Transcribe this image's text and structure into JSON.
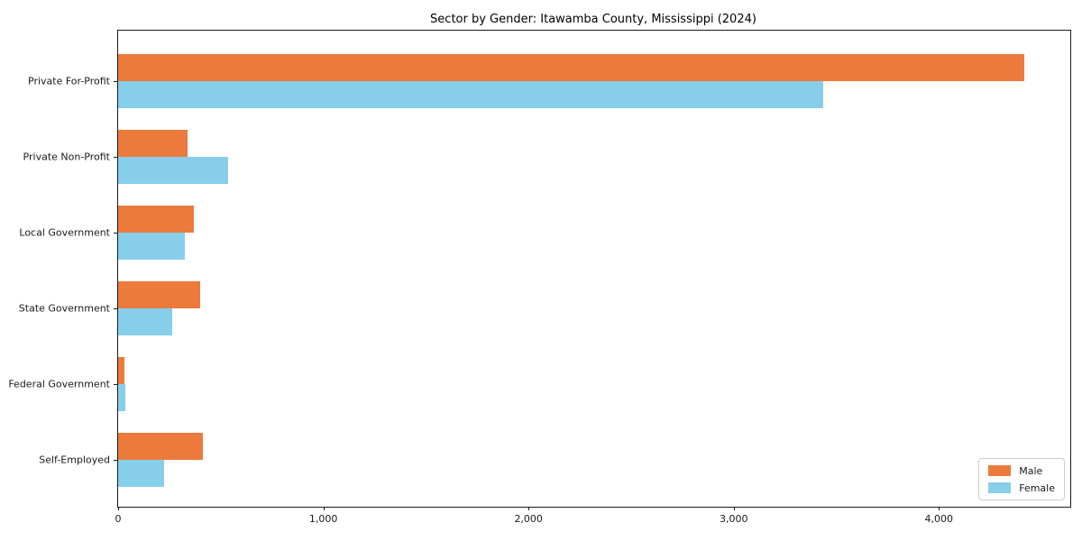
{
  "title": "Sector by Gender: Itawamba County, Mississippi (2024)",
  "colors": {
    "male": "#ec7a3c",
    "female": "#87ceeb",
    "axis_spine": "#1a1a1a",
    "legend_border": "#cccccc",
    "background": "#ffffff"
  },
  "chart_data": {
    "type": "bar",
    "orientation": "horizontal",
    "title": "Sector by Gender: Itawamba County, Mississippi (2024)",
    "xlabel": "",
    "ylabel": "",
    "grid": false,
    "categories": [
      "Private For-Profit",
      "Private Non-Profit",
      "Local Government",
      "State Government",
      "Federal Government",
      "Self-Employed"
    ],
    "series": [
      {
        "name": "Male",
        "color": "#ec7a3c",
        "values": [
          4415,
          340,
          370,
          400,
          30,
          415
        ]
      },
      {
        "name": "Female",
        "color": "#87ceeb",
        "values": [
          3435,
          535,
          325,
          265,
          35,
          225
        ]
      }
    ],
    "xlim": [
      0,
      4640
    ],
    "x_ticks": [
      0,
      1000,
      2000,
      3000,
      4000
    ],
    "x_tick_labels": [
      "0",
      "1,000",
      "2,000",
      "3,000",
      "4,000"
    ],
    "legend": {
      "position": "lower right",
      "entries": [
        "Male",
        "Female"
      ]
    }
  }
}
